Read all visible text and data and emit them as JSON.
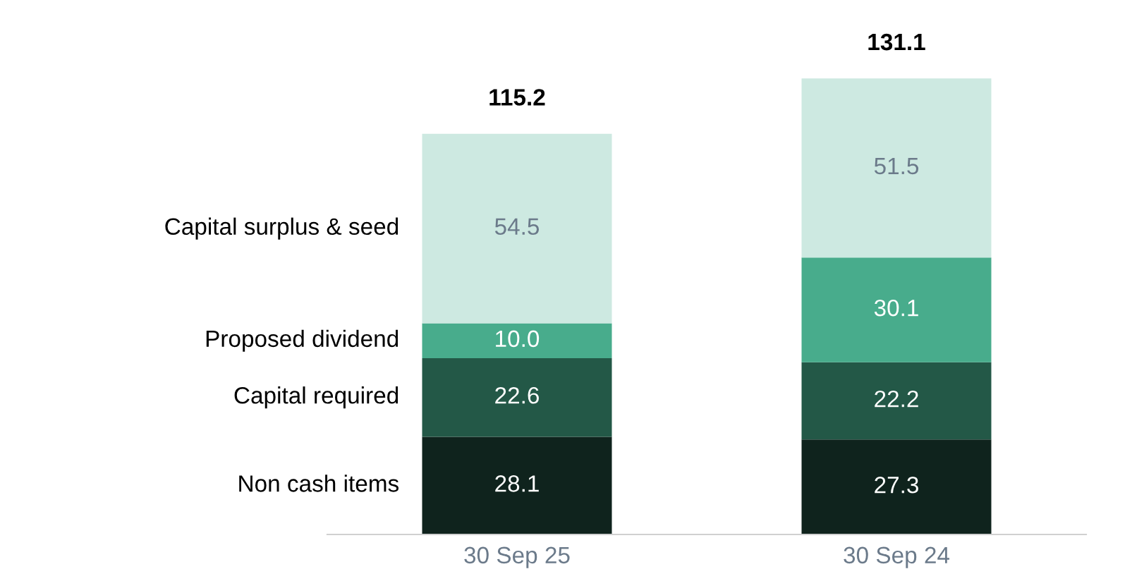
{
  "chart_data": {
    "type": "bar",
    "stacked": true,
    "data_labels": true,
    "categories": [
      "30 Sep 25",
      "30 Sep 24"
    ],
    "series": [
      {
        "name": "Non cash items",
        "color": "#0f231d",
        "values": [
          28.1,
          27.3
        ]
      },
      {
        "name": "Capital required",
        "color": "#235847",
        "values": [
          22.6,
          22.2
        ]
      },
      {
        "name": "Proposed dividend",
        "color": "#48ac8c",
        "values": [
          10.0,
          30.1
        ],
        "value_labels": [
          "10.0",
          "30.1"
        ]
      },
      {
        "name": "Capital surplus & seed",
        "color": "#cde9e1",
        "values": [
          54.5,
          51.5
        ]
      }
    ],
    "totals": [
      "115.2",
      "131.1"
    ],
    "grid": false,
    "legend": false
  }
}
